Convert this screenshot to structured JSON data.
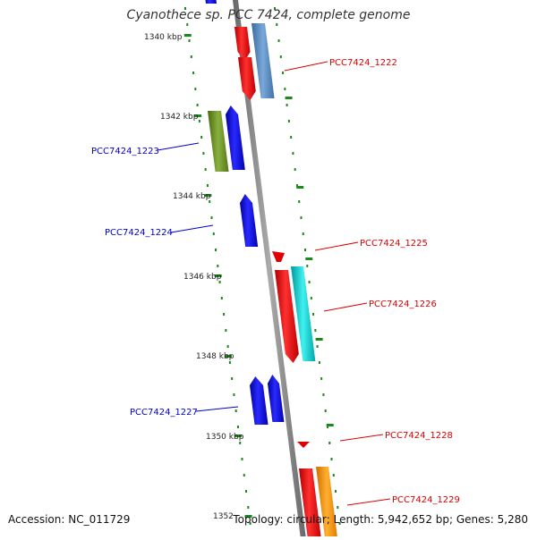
{
  "title": "Cyanothece sp. PCC 7424, complete genome",
  "accession": "Accession: NC_011729",
  "topology": "Topology: circular; Length: 5,942,652 bp; Genes: 5,280",
  "kbp_labels": [
    "1340 kbp",
    "1342 kbp",
    "1344 kbp",
    "1346 kbp",
    "1348 kbp",
    "1350 kbp",
    "1352"
  ],
  "genes": [
    {
      "label": "PCC7424_1222",
      "color": "#dd0000"
    },
    {
      "label": "PCC7424_1223",
      "color": "#0000cc"
    },
    {
      "label": "PCC7424_1224",
      "color": "#0000cc"
    },
    {
      "label": "PCC7424_1225",
      "color": "#dd0000"
    },
    {
      "label": "PCC7424_1226",
      "color": "#dd0000"
    },
    {
      "label": "PCC7424_1227",
      "color": "#0000cc"
    },
    {
      "label": "PCC7424_1228",
      "color": "#dd0000"
    },
    {
      "label": "PCC7424_1229",
      "color": "#dd0000"
    }
  ],
  "colors": {
    "forward": "#ff0000",
    "reverse": "#0000ff",
    "cog_steel": "#4f86c6",
    "cog_olive": "#6b8e23",
    "cog_cyan": "#00c8c8",
    "cog_orange": "#ff9900",
    "backbone": "#888888",
    "tick": "#1a8a1a"
  }
}
